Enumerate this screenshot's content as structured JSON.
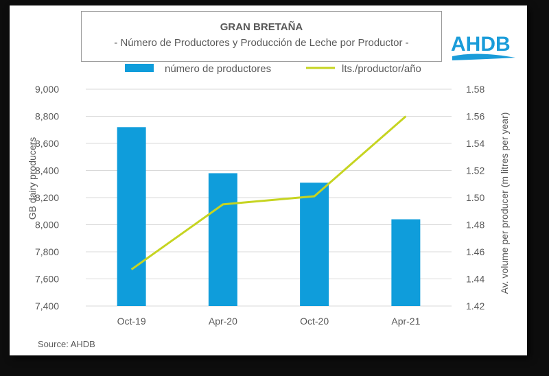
{
  "header": {
    "title": "GRAN BRETAÑA",
    "subtitle": "- Número de Productores y Producción de Leche por Productor -"
  },
  "logo": {
    "text": "AHDB",
    "color": "#1a9cd9"
  },
  "source": "Source: AHDB",
  "colors": {
    "bar": "#0f9ddb",
    "line": "#c6d421",
    "text": "#595959",
    "grid": "#d9d9d9"
  },
  "chart_data": {
    "type": "bar",
    "categories": [
      "Oct-19",
      "Apr-20",
      "Oct-20",
      "Apr-21"
    ],
    "series": [
      {
        "name": "número de productores",
        "type": "bar",
        "axis": "left",
        "values": [
          8720,
          8380,
          8310,
          8040
        ]
      },
      {
        "name": "lts./productor/año",
        "type": "line",
        "axis": "right",
        "values": [
          1.447,
          1.495,
          1.501,
          1.56
        ]
      }
    ],
    "ylabel": "GB dairy producers",
    "y2label": "Av. volume per producer (m litres per year)",
    "ylim": [
      7400,
      9000
    ],
    "y2lim": [
      1.42,
      1.58
    ],
    "yticks": [
      "7,400",
      "7,600",
      "7,800",
      "8,000",
      "8,200",
      "8,400",
      "8,600",
      "8,800",
      "9,000"
    ],
    "y2ticks": [
      "1.42",
      "1.44",
      "1.46",
      "1.48",
      "1.50",
      "1.52",
      "1.54",
      "1.56",
      "1.58"
    ],
    "legend": "top",
    "grid": true
  }
}
